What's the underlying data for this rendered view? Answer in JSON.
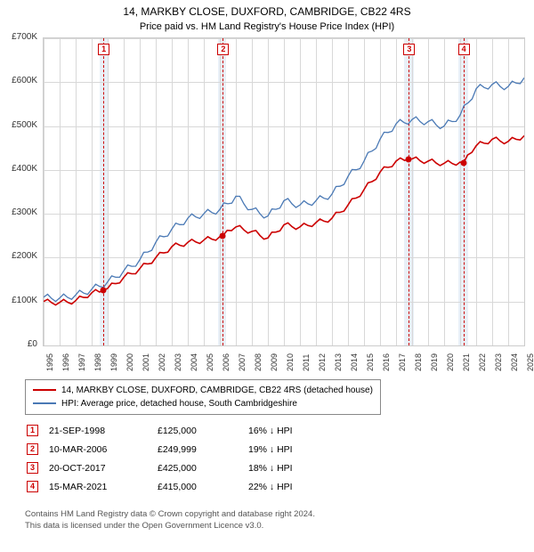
{
  "title_line1": "14, MARKBY CLOSE, DUXFORD, CAMBRIDGE, CB22 4RS",
  "title_line2": "Price paid vs. HM Land Registry's House Price Index (HPI)",
  "chart": {
    "type": "line",
    "background_color": "#ffffff",
    "grid_color": "#d8d8d8",
    "x_years": [
      1995,
      1996,
      1997,
      1998,
      1999,
      2000,
      2001,
      2002,
      2003,
      2004,
      2005,
      2006,
      2007,
      2008,
      2009,
      2010,
      2011,
      2012,
      2013,
      2014,
      2015,
      2016,
      2017,
      2018,
      2019,
      2020,
      2021,
      2022,
      2023,
      2024,
      2025
    ],
    "xlim": [
      1995,
      2025
    ],
    "ylim": [
      0,
      700000
    ],
    "ytick_step": 100000,
    "y_ticks_labels": [
      "£0",
      "£100K",
      "£200K",
      "£300K",
      "£400K",
      "£500K",
      "£600K",
      "£700K"
    ],
    "series": [
      {
        "name": "price_paid",
        "color": "#cc0000",
        "line_width": 1.6,
        "values": {
          "1995": 100000,
          "1996": 98000,
          "1997": 102000,
          "1998": 120000,
          "1998.73": 125000,
          "1999": 130000,
          "2000": 155000,
          "2001": 175000,
          "2002": 200000,
          "2003": 225000,
          "2004": 235000,
          "2005": 240000,
          "2006": 248000,
          "2006.19": 249999,
          "2007": 270000,
          "2008": 260000,
          "2009": 245000,
          "2010": 275000,
          "2011": 270000,
          "2012": 280000,
          "2013": 290000,
          "2014": 320000,
          "2015": 355000,
          "2016": 395000,
          "2017": 420000,
          "2017.8": 425000,
          "2018": 425000,
          "2019": 420000,
          "2020": 415000,
          "2021": 418000,
          "2021.2": 415000,
          "2022": 455000,
          "2023": 470000,
          "2024": 465000,
          "2025": 478000
        }
      },
      {
        "name": "hpi",
        "color": "#4a79b5",
        "line_width": 1.3,
        "values": {
          "1995": 110000,
          "1996": 108000,
          "1997": 115000,
          "1998": 128000,
          "1999": 145000,
          "2000": 170000,
          "2001": 195000,
          "2002": 235000,
          "2003": 265000,
          "2004": 290000,
          "2005": 300000,
          "2006": 310000,
          "2007": 340000,
          "2008": 310000,
          "2009": 295000,
          "2010": 330000,
          "2011": 320000,
          "2012": 330000,
          "2013": 345000,
          "2014": 385000,
          "2015": 420000,
          "2016": 470000,
          "2017": 505000,
          "2018": 515000,
          "2019": 510000,
          "2020": 500000,
          "2021": 525000,
          "2022": 585000,
          "2023": 595000,
          "2024": 590000,
          "2025": 610000
        }
      }
    ],
    "shaded_ranges": [
      {
        "from": 1998.5,
        "to": 1999.0,
        "color": "#dbe6f4"
      },
      {
        "from": 2005.9,
        "to": 2006.4,
        "color": "#dbe6f4"
      },
      {
        "from": 2017.5,
        "to": 2018.1,
        "color": "#dbe6f4"
      },
      {
        "from": 2020.9,
        "to": 2021.5,
        "color": "#dbe6f4"
      }
    ],
    "sale_markers": [
      {
        "n": "1",
        "year": 1998.73,
        "price": 125000
      },
      {
        "n": "2",
        "year": 2006.19,
        "price": 249999
      },
      {
        "n": "3",
        "year": 2017.8,
        "price": 425000
      },
      {
        "n": "4",
        "year": 2021.2,
        "price": 415000
      }
    ],
    "marker_box_color": "#cc0000",
    "marker_line_color": "#cc0000"
  },
  "legend": {
    "series1_label": "14, MARKBY CLOSE, DUXFORD, CAMBRIDGE, CB22 4RS (detached house)",
    "series1_color": "#cc0000",
    "series2_label": "HPI: Average price, detached house, South Cambridgeshire",
    "series2_color": "#4a79b5"
  },
  "sales_table": {
    "rows": [
      {
        "n": "1",
        "date": "21-SEP-1998",
        "price": "£125,000",
        "delta": "16% ↓ HPI"
      },
      {
        "n": "2",
        "date": "10-MAR-2006",
        "price": "£249,999",
        "delta": "19% ↓ HPI"
      },
      {
        "n": "3",
        "date": "20-OCT-2017",
        "price": "£425,000",
        "delta": "18% ↓ HPI"
      },
      {
        "n": "4",
        "date": "15-MAR-2021",
        "price": "£415,000",
        "delta": "22% ↓ HPI"
      }
    ]
  },
  "footer_line1": "Contains HM Land Registry data © Crown copyright and database right 2024.",
  "footer_line2": "This data is licensed under the Open Government Licence v3.0."
}
